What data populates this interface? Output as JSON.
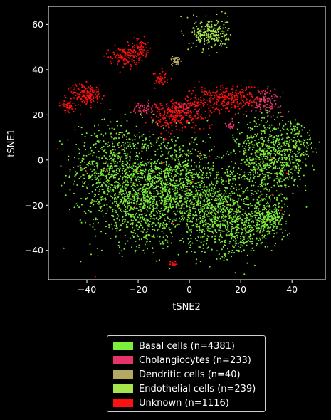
{
  "chart_data": {
    "type": "scatter",
    "title": "",
    "xlabel": "tSNE2",
    "ylabel": "tSNE1",
    "xlim": [
      -55,
      53
    ],
    "ylim": [
      -53,
      68
    ],
    "xticks": [
      -40,
      -20,
      0,
      20,
      40
    ],
    "xtick_labels": [
      "−40",
      "−20",
      "0",
      "20",
      "40"
    ],
    "yticks": [
      -40,
      -20,
      0,
      20,
      40,
      60
    ],
    "ytick_labels": [
      "−40",
      "−20",
      "0",
      "20",
      "40",
      "60"
    ],
    "grid": false,
    "legend_position": "below",
    "series": [
      {
        "name": "Basal cells (n=4381)",
        "color": "#7cef3a",
        "count": 4381,
        "clusters": [
          {
            "cx": -30,
            "cy": -3,
            "sx": 8,
            "sy": 10,
            "n": 600
          },
          {
            "cx": -20,
            "cy": -18,
            "sx": 9,
            "sy": 10,
            "n": 800
          },
          {
            "cx": -5,
            "cy": -10,
            "sx": 8,
            "sy": 11,
            "n": 800
          },
          {
            "cx": 10,
            "cy": -22,
            "sx": 9,
            "sy": 9,
            "n": 700
          },
          {
            "cx": 20,
            "cy": -30,
            "sx": 7,
            "sy": 6,
            "n": 400
          },
          {
            "cx": 30,
            "cy": 0,
            "sx": 6,
            "sy": 10,
            "n": 700
          },
          {
            "cx": 41,
            "cy": 5,
            "sx": 4,
            "sy": 6,
            "n": 200
          },
          {
            "cx": 32,
            "cy": -25,
            "sx": 3,
            "sy": 3,
            "n": 181
          }
        ]
      },
      {
        "name": "Cholangiocytes (n=233)",
        "color": "#e8336a",
        "count": 233,
        "clusters": [
          {
            "cx": 30,
            "cy": 26,
            "sx": 3,
            "sy": 2.5,
            "n": 120
          },
          {
            "cx": -18,
            "cy": 23,
            "sx": 2,
            "sy": 1.5,
            "n": 50
          },
          {
            "cx": -3,
            "cy": 23,
            "sx": 3,
            "sy": 2,
            "n": 40
          },
          {
            "cx": 16,
            "cy": 15,
            "sx": 1,
            "sy": 1,
            "n": 23
          }
        ]
      },
      {
        "name": "Dendritic cells (n=40)",
        "color": "#b4a862",
        "count": 40,
        "clusters": [
          {
            "cx": -5,
            "cy": 44,
            "sx": 1,
            "sy": 1,
            "n": 40
          }
        ]
      },
      {
        "name": "Endothelial cells (n=239)",
        "color": "#a6e64a",
        "count": 239,
        "clusters": [
          {
            "cx": 8,
            "cy": 56,
            "sx": 3.5,
            "sy": 3.5,
            "n": 239
          }
        ]
      },
      {
        "name": "Unknown (n=1116)",
        "color": "#ff1010",
        "count": 1116,
        "clusters": [
          {
            "cx": -40,
            "cy": 29,
            "sx": 3,
            "sy": 2.5,
            "n": 170
          },
          {
            "cx": -47,
            "cy": 24,
            "sx": 1.5,
            "sy": 1.5,
            "n": 50
          },
          {
            "cx": -25,
            "cy": 46,
            "sx": 3,
            "sy": 2,
            "n": 130
          },
          {
            "cx": -20,
            "cy": 50,
            "sx": 2,
            "sy": 2,
            "n": 70
          },
          {
            "cx": -11,
            "cy": 36,
            "sx": 1.5,
            "sy": 1.5,
            "n": 40
          },
          {
            "cx": -5,
            "cy": 20,
            "sx": 6,
            "sy": 3.5,
            "n": 300
          },
          {
            "cx": 14,
            "cy": 27,
            "sx": 7,
            "sy": 3,
            "n": 300
          },
          {
            "cx": -6,
            "cy": -46,
            "sx": 1,
            "sy": 0.7,
            "n": 20
          },
          {
            "cx": 0,
            "cy": 0,
            "sx": 25,
            "sy": 20,
            "n": 36
          }
        ]
      }
    ]
  }
}
